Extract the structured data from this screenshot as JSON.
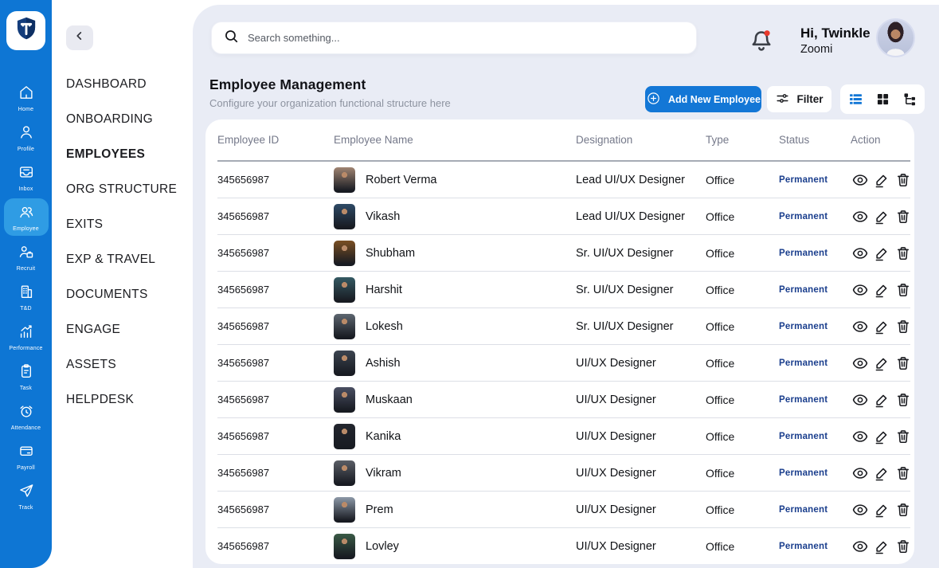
{
  "theme": {
    "rail_blue": "#0e76d4",
    "active_tile_blue": "#2f9ce4",
    "button_blue": "#1377d6",
    "panel_bg": "#e9ecf5",
    "status_navy": "#1a3e8d",
    "alert_red": "#e8392c"
  },
  "rail": {
    "logo_icon": "logo-shield",
    "items": [
      {
        "label": "Home",
        "icon": "home"
      },
      {
        "label": "Profile",
        "icon": "profile"
      },
      {
        "label": "Inbox",
        "icon": "inbox"
      },
      {
        "label": "Employee",
        "icon": "employee",
        "active": true
      },
      {
        "label": "Recruit",
        "icon": "recruit"
      },
      {
        "label": "T&D",
        "icon": "td"
      },
      {
        "label": "Performance",
        "icon": "performance"
      },
      {
        "label": "Task",
        "icon": "task"
      },
      {
        "label": "Attendance",
        "icon": "attendance"
      },
      {
        "label": "Payroll",
        "icon": "payroll"
      },
      {
        "label": "Track",
        "icon": "track"
      }
    ]
  },
  "nav": {
    "back_icon": "chevron-left",
    "items": [
      {
        "label": "DASHBOARD"
      },
      {
        "label": "ONBOARDING"
      },
      {
        "label": "EMPLOYEES",
        "active": true
      },
      {
        "label": "ORG STRUCTURE"
      },
      {
        "label": "EXITS"
      },
      {
        "label": "EXP & TRAVEL"
      },
      {
        "label": "DOCUMENTS"
      },
      {
        "label": "ENGAGE"
      },
      {
        "label": "ASSETS"
      },
      {
        "label": "HELPDESK"
      }
    ]
  },
  "topbar": {
    "search_placeholder": "Search something...",
    "greeting_line1": "Hi, Twinkle",
    "greeting_line2": "Zoomi"
  },
  "header": {
    "title": "Employee Management",
    "subtitle": "Configure your organization functional structure here",
    "add_button_label": "Add New Employee",
    "filter_button_label": "Filter",
    "view_toggles": [
      {
        "icon": "list-view",
        "active": true
      },
      {
        "icon": "grid-view"
      },
      {
        "icon": "tree-view"
      }
    ]
  },
  "table": {
    "columns": [
      {
        "label": "Employee ID"
      },
      {
        "label": "Employee Name"
      },
      {
        "label": "Designation"
      },
      {
        "label": "Type"
      },
      {
        "label": "Status"
      },
      {
        "label": "Action"
      }
    ],
    "rows": [
      {
        "id": "345656987",
        "name": "Robert Verma",
        "designation": "Lead UI/UX Designer",
        "type": "Office",
        "status": "Permanent",
        "tint": "#a08472"
      },
      {
        "id": "345656987",
        "name": "Vikash",
        "designation": "Lead UI/UX Designer",
        "type": "Office",
        "status": "Permanent",
        "tint": "#2e4a66"
      },
      {
        "id": "345656987",
        "name": "Shubham",
        "designation": "Sr. UI/UX Designer",
        "type": "Office",
        "status": "Permanent",
        "tint": "#7a4f23"
      },
      {
        "id": "345656987",
        "name": "Harshit",
        "designation": "Sr. UI/UX Designer",
        "type": "Office",
        "status": "Permanent",
        "tint": "#355a63"
      },
      {
        "id": "345656987",
        "name": "Lokesh",
        "designation": "Sr. UI/UX Designer",
        "type": "Office",
        "status": "Permanent",
        "tint": "#5d6670"
      },
      {
        "id": "345656987",
        "name": "Ashish",
        "designation": "UI/UX Designer",
        "type": "Office",
        "status": "Permanent",
        "tint": "#3c4450"
      },
      {
        "id": "345656987",
        "name": "Muskaan",
        "designation": "UI/UX Designer",
        "type": "Office",
        "status": "Permanent",
        "tint": "#4a4f62"
      },
      {
        "id": "345656987",
        "name": "Kanika",
        "designation": "UI/UX Designer",
        "type": "Office",
        "status": "Permanent",
        "tint": "#23262e"
      },
      {
        "id": "345656987",
        "name": "Vikram",
        "designation": "UI/UX Designer",
        "type": "Office",
        "status": "Permanent",
        "tint": "#5a5e66"
      },
      {
        "id": "345656987",
        "name": "Prem",
        "designation": "UI/UX Designer",
        "type": "Office",
        "status": "Permanent",
        "tint": "#8d99a8"
      },
      {
        "id": "345656987",
        "name": "Lovley",
        "designation": "UI/UX Designer",
        "type": "Office",
        "status": "Permanent",
        "tint": "#3a5a46"
      }
    ]
  }
}
